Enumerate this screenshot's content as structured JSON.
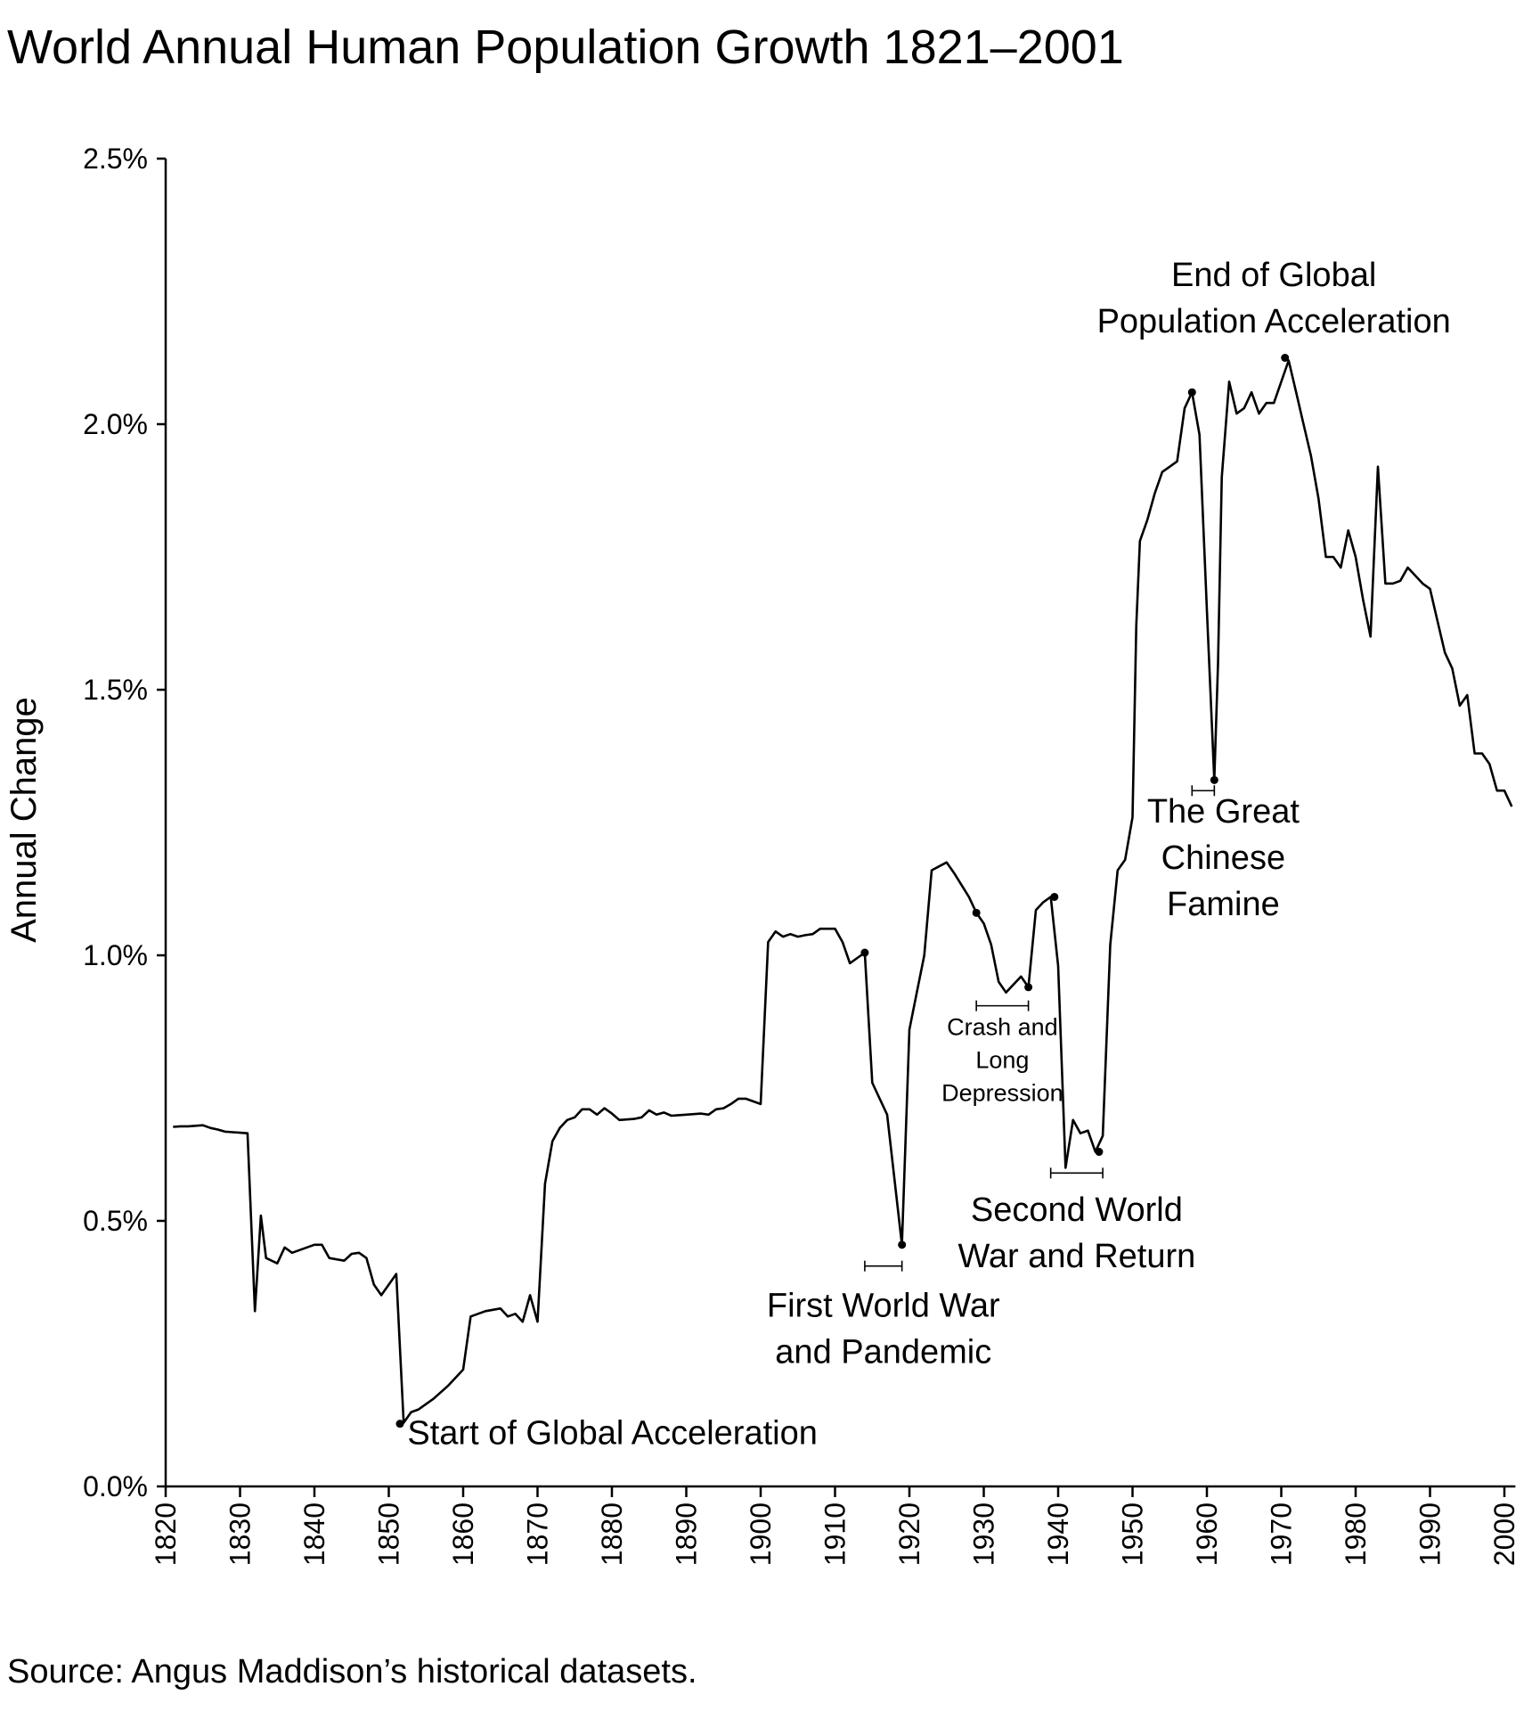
{
  "page": {
    "title": "World Annual Human Population Growth 1821–2001",
    "source": "Source: Angus Maddison’s historical datasets."
  },
  "chart_data": {
    "type": "line",
    "title": "World Annual Human Population Growth 1821–2001",
    "xlabel": "",
    "ylabel": "Annual Change",
    "xlim": [
      1820,
      2001
    ],
    "ylim": [
      0,
      2.5
    ],
    "grid": false,
    "legend": "none",
    "line_color": "#000000",
    "x_ticks": [
      1820,
      1830,
      1840,
      1850,
      1860,
      1870,
      1880,
      1890,
      1900,
      1910,
      1920,
      1930,
      1940,
      1950,
      1960,
      1970,
      1980,
      1990,
      2000
    ],
    "x_tick_labels": [
      "1820",
      "1830",
      "1840",
      "1850",
      "1860",
      "1870",
      "1880",
      "1890",
      "1900",
      "1910",
      "1920",
      "1930",
      "1940",
      "1950",
      "1960",
      "1970",
      "1980",
      "1990",
      "2000"
    ],
    "y_ticks": [
      0,
      0.5,
      1.0,
      1.5,
      2.0,
      2.5
    ],
    "y_tick_labels": [
      "0.0%",
      "0.5%",
      "1.0%",
      "1.5%",
      "2.0%",
      "2.5%"
    ],
    "series": [
      {
        "points": [
          [
            1821,
            0.677
          ],
          [
            1822,
            0.678
          ],
          [
            1823,
            0.678
          ],
          [
            1824,
            0.679
          ],
          [
            1825,
            0.68
          ],
          [
            1826,
            0.675
          ],
          [
            1827,
            0.672
          ],
          [
            1828,
            0.668
          ],
          [
            1829,
            0.667
          ],
          [
            1830,
            0.666
          ],
          [
            1831,
            0.665
          ],
          [
            1832,
            0.33
          ],
          [
            1832.8,
            0.51
          ],
          [
            1833.5,
            0.43
          ],
          [
            1835,
            0.42
          ],
          [
            1836,
            0.45
          ],
          [
            1837,
            0.44
          ],
          [
            1839,
            0.45
          ],
          [
            1840,
            0.455
          ],
          [
            1841,
            0.455
          ],
          [
            1842,
            0.43
          ],
          [
            1844,
            0.425
          ],
          [
            1845,
            0.438
          ],
          [
            1846,
            0.44
          ],
          [
            1847,
            0.43
          ],
          [
            1848,
            0.38
          ],
          [
            1849,
            0.36
          ],
          [
            1851,
            0.4
          ],
          [
            1852,
            0.12
          ],
          [
            1853,
            0.14
          ],
          [
            1854,
            0.145
          ],
          [
            1856,
            0.165
          ],
          [
            1858,
            0.19
          ],
          [
            1860,
            0.22
          ],
          [
            1861,
            0.32
          ],
          [
            1863,
            0.33
          ],
          [
            1865,
            0.335
          ],
          [
            1866,
            0.32
          ],
          [
            1867,
            0.325
          ],
          [
            1868,
            0.31
          ],
          [
            1869,
            0.36
          ],
          [
            1870,
            0.31
          ],
          [
            1871,
            0.57
          ],
          [
            1872,
            0.65
          ],
          [
            1873,
            0.675
          ],
          [
            1874,
            0.69
          ],
          [
            1875,
            0.695
          ],
          [
            1876,
            0.71
          ],
          [
            1877,
            0.71
          ],
          [
            1878,
            0.7
          ],
          [
            1879,
            0.712
          ],
          [
            1880,
            0.702
          ],
          [
            1881,
            0.69
          ],
          [
            1883,
            0.692
          ],
          [
            1884,
            0.695
          ],
          [
            1885,
            0.708
          ],
          [
            1886,
            0.7
          ],
          [
            1887,
            0.704
          ],
          [
            1888,
            0.698
          ],
          [
            1890,
            0.7
          ],
          [
            1892,
            0.702
          ],
          [
            1893,
            0.7
          ],
          [
            1894,
            0.71
          ],
          [
            1895,
            0.712
          ],
          [
            1896,
            0.72
          ],
          [
            1897,
            0.73
          ],
          [
            1898,
            0.73
          ],
          [
            1899,
            0.725
          ],
          [
            1900,
            0.72
          ],
          [
            1901,
            1.025
          ],
          [
            1902,
            1.045
          ],
          [
            1903,
            1.035
          ],
          [
            1904,
            1.04
          ],
          [
            1905,
            1.035
          ],
          [
            1906,
            1.038
          ],
          [
            1907,
            1.04
          ],
          [
            1908,
            1.05
          ],
          [
            1910,
            1.05
          ],
          [
            1911,
            1.025
          ],
          [
            1912,
            0.985
          ],
          [
            1913,
            0.995
          ],
          [
            1914,
            1.005
          ],
          [
            1915,
            0.76
          ],
          [
            1917,
            0.7
          ],
          [
            1919,
            0.455
          ],
          [
            1920,
            0.86
          ],
          [
            1921,
            0.93
          ],
          [
            1922,
            1.0
          ],
          [
            1923,
            1.16
          ],
          [
            1925,
            1.175
          ],
          [
            1926,
            1.155
          ],
          [
            1928,
            1.11
          ],
          [
            1929,
            1.08
          ],
          [
            1930,
            1.06
          ],
          [
            1931,
            1.02
          ],
          [
            1932,
            0.95
          ],
          [
            1933,
            0.93
          ],
          [
            1935,
            0.96
          ],
          [
            1936,
            0.94
          ],
          [
            1937,
            1.085
          ],
          [
            1938,
            1.1
          ],
          [
            1939,
            1.11
          ],
          [
            1940,
            0.98
          ],
          [
            1941,
            0.6
          ],
          [
            1942,
            0.69
          ],
          [
            1943,
            0.665
          ],
          [
            1944,
            0.67
          ],
          [
            1945,
            0.63
          ],
          [
            1946,
            0.66
          ],
          [
            1947,
            1.02
          ],
          [
            1948,
            1.16
          ],
          [
            1949,
            1.18
          ],
          [
            1950,
            1.26
          ],
          [
            1950.5,
            1.62
          ],
          [
            1951,
            1.78
          ],
          [
            1952,
            1.82
          ],
          [
            1953,
            1.87
          ],
          [
            1954,
            1.91
          ],
          [
            1955,
            1.92
          ],
          [
            1956,
            1.93
          ],
          [
            1957,
            2.03
          ],
          [
            1958,
            2.06
          ],
          [
            1959,
            1.98
          ],
          [
            1960,
            1.65
          ],
          [
            1961,
            1.33
          ],
          [
            1961.5,
            1.55
          ],
          [
            1962,
            1.9
          ],
          [
            1963,
            2.08
          ],
          [
            1964,
            2.02
          ],
          [
            1965,
            2.03
          ],
          [
            1966,
            2.06
          ],
          [
            1967,
            2.02
          ],
          [
            1968,
            2.04
          ],
          [
            1969,
            2.04
          ],
          [
            1970,
            2.08
          ],
          [
            1971,
            2.12
          ],
          [
            1972,
            2.06
          ],
          [
            1973,
            2.0
          ],
          [
            1974,
            1.94
          ],
          [
            1975,
            1.86
          ],
          [
            1976,
            1.75
          ],
          [
            1977,
            1.75
          ],
          [
            1978,
            1.73
          ],
          [
            1979,
            1.8
          ],
          [
            1980,
            1.75
          ],
          [
            1981,
            1.67
          ],
          [
            1982,
            1.6
          ],
          [
            1983,
            1.92
          ],
          [
            1984,
            1.7
          ],
          [
            1985,
            1.7
          ],
          [
            1986,
            1.705
          ],
          [
            1987,
            1.73
          ],
          [
            1989,
            1.7
          ],
          [
            1990,
            1.69
          ],
          [
            1991,
            1.63
          ],
          [
            1992,
            1.57
          ],
          [
            1993,
            1.54
          ],
          [
            1994,
            1.47
          ],
          [
            1995,
            1.49
          ],
          [
            1996,
            1.38
          ],
          [
            1997,
            1.38
          ],
          [
            1998,
            1.36
          ],
          [
            1999,
            1.31
          ],
          [
            2000,
            1.31
          ],
          [
            2001,
            1.28
          ]
        ]
      }
    ],
    "markers": [
      {
        "x": 1851.5,
        "y": 0.118
      },
      {
        "x": 1914,
        "y": 1.005
      },
      {
        "x": 1919,
        "y": 0.455
      },
      {
        "x": 1929,
        "y": 1.08
      },
      {
        "x": 1936,
        "y": 0.94
      },
      {
        "x": 1939.5,
        "y": 1.11
      },
      {
        "x": 1945.5,
        "y": 0.63
      },
      {
        "x": 1958,
        "y": 2.06
      },
      {
        "x": 1961,
        "y": 1.33
      },
      {
        "x": 1970.5,
        "y": 2.125
      }
    ],
    "brackets": [
      {
        "x1": 1914,
        "x2": 1919,
        "y": 0.415
      },
      {
        "x1": 1929,
        "x2": 1936,
        "y": 0.905
      },
      {
        "x1": 1939,
        "x2": 1946,
        "y": 0.59
      },
      {
        "x1": 1958,
        "x2": 1961,
        "y": 1.31
      }
    ],
    "annotations": [
      {
        "x": 1852.5,
        "y": 0.08,
        "anchor": "start",
        "size": "lg",
        "lines": [
          "Start of Global Acceleration"
        ]
      },
      {
        "x": 1916.5,
        "y": 0.32,
        "anchor": "middle",
        "size": "lg",
        "lines": [
          "First World War",
          "and Pandemic"
        ]
      },
      {
        "x": 1932.5,
        "y": 0.85,
        "anchor": "middle",
        "size": "sm",
        "lines": [
          "Crash and",
          "Long",
          "Depression"
        ]
      },
      {
        "x": 1942.5,
        "y": 0.5,
        "anchor": "middle",
        "size": "lg",
        "lines": [
          "Second World",
          "War and Return"
        ]
      },
      {
        "x": 1962.2,
        "y": 1.25,
        "anchor": "middle",
        "size": "lg",
        "lines": [
          "The Great",
          "Chinese",
          "Famine"
        ]
      },
      {
        "x": 1969,
        "y": 2.26,
        "anchor": "middle",
        "size": "lg",
        "lines": [
          "End of Global",
          "Population Acceleration"
        ]
      }
    ]
  }
}
